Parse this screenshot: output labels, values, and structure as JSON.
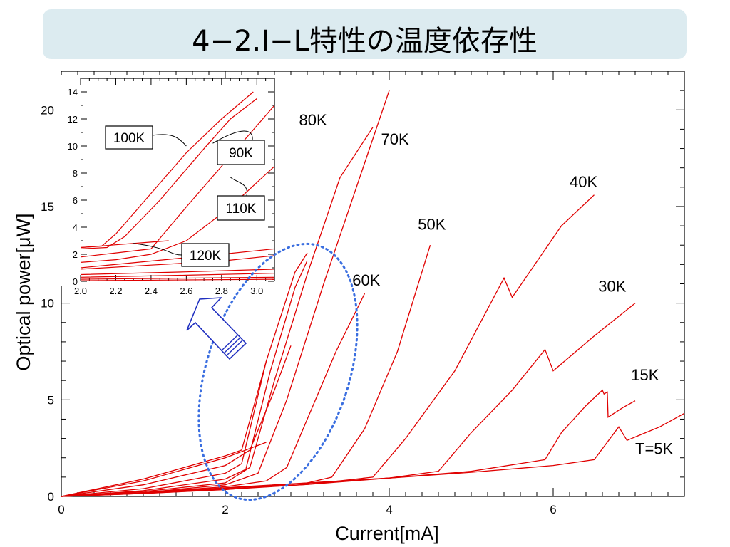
{
  "page": {
    "title": "4−2.I−L特性の温度依存性"
  },
  "colors": {
    "curve": "#e00000",
    "ellipse": "#3a6ee0",
    "arrow": "#2030c0",
    "axis": "#000000"
  },
  "chart_data": [
    {
      "type": "line",
      "xlabel": "Current[mA]",
      "ylabel": "Optical power[μW]",
      "xlim": [
        0,
        7.6
      ],
      "ylim": [
        0,
        22
      ],
      "xticks": [
        0,
        2,
        4,
        6
      ],
      "yticks": [
        0,
        5,
        10,
        15,
        20
      ],
      "series": [
        {
          "name": "T=5K",
          "label_x": 7.0,
          "label_y": 2.2,
          "points": [
            [
              0,
              0
            ],
            [
              1,
              0.2
            ],
            [
              2,
              0.45
            ],
            [
              3,
              0.7
            ],
            [
              4,
              0.95
            ],
            [
              5,
              1.25
            ],
            [
              6,
              1.6
            ],
            [
              6.5,
              1.9
            ],
            [
              6.8,
              3.6
            ],
            [
              6.9,
              2.9
            ],
            [
              7.3,
              3.6
            ],
            [
              7.6,
              4.3
            ]
          ]
        },
        {
          "name": "15K",
          "label_x": 6.95,
          "label_y": 6.0,
          "points": [
            [
              0,
              0
            ],
            [
              1,
              0.18
            ],
            [
              2,
              0.42
            ],
            [
              3,
              0.68
            ],
            [
              4,
              0.95
            ],
            [
              5,
              1.3
            ],
            [
              5.9,
              1.9
            ],
            [
              6.1,
              3.3
            ],
            [
              6.4,
              4.7
            ],
            [
              6.6,
              5.5
            ],
            [
              6.62,
              5.3
            ],
            [
              6.66,
              5.4
            ],
            [
              6.67,
              4.1
            ],
            [
              6.85,
              4.6
            ],
            [
              7.0,
              4.95
            ]
          ]
        },
        {
          "name": "30K",
          "label_x": 6.55,
          "label_y": 10.6,
          "points": [
            [
              0,
              0
            ],
            [
              1,
              0.16
            ],
            [
              2,
              0.38
            ],
            [
              3,
              0.62
            ],
            [
              4,
              0.95
            ],
            [
              4.6,
              1.3
            ],
            [
              5.0,
              3.3
            ],
            [
              5.5,
              5.5
            ],
            [
              5.9,
              7.6
            ],
            [
              6.0,
              6.5
            ],
            [
              6.5,
              8.3
            ],
            [
              7.0,
              10.0
            ]
          ]
        },
        {
          "name": "40K",
          "label_x": 6.2,
          "label_y": 16.0,
          "points": [
            [
              0,
              0
            ],
            [
              1,
              0.15
            ],
            [
              2,
              0.36
            ],
            [
              3,
              0.62
            ],
            [
              3.8,
              1.0
            ],
            [
              4.2,
              3.0
            ],
            [
              4.8,
              6.5
            ],
            [
              5.4,
              11.3
            ],
            [
              5.5,
              10.3
            ],
            [
              6.1,
              14.0
            ],
            [
              6.5,
              15.6
            ]
          ]
        },
        {
          "name": "50K",
          "label_x": 4.35,
          "label_y": 13.8,
          "points": [
            [
              0,
              0
            ],
            [
              1,
              0.15
            ],
            [
              2,
              0.35
            ],
            [
              3,
              0.7
            ],
            [
              3.3,
              1.0
            ],
            [
              3.7,
              3.5
            ],
            [
              4.1,
              7.5
            ],
            [
              4.5,
              13.0
            ]
          ]
        },
        {
          "name": "60K",
          "label_x": 3.55,
          "label_y": 10.9,
          "points": [
            [
              0,
              0
            ],
            [
              1,
              0.2
            ],
            [
              2,
              0.5
            ],
            [
              2.5,
              0.8
            ],
            [
              2.75,
              1.5
            ],
            [
              3.0,
              4.0
            ],
            [
              3.35,
              7.5
            ],
            [
              3.7,
              10.5
            ]
          ]
        },
        {
          "name": "70K",
          "label_x": 3.9,
          "label_y": 18.2,
          "points": [
            [
              0,
              0
            ],
            [
              1,
              0.2
            ],
            [
              2,
              0.6
            ],
            [
              2.4,
              1.2
            ],
            [
              2.75,
              5.0
            ],
            [
              3.2,
              11.0
            ],
            [
              3.6,
              16.0
            ],
            [
              4.0,
              21.0
            ]
          ]
        },
        {
          "name": "80K",
          "label_x": 2.9,
          "label_y": 19.2,
          "points": [
            [
              0,
              0
            ],
            [
              1,
              0.25
            ],
            [
              2,
              0.7
            ],
            [
              2.3,
              1.5
            ],
            [
              2.6,
              6.0
            ],
            [
              3.0,
              11.5
            ],
            [
              3.4,
              16.5
            ],
            [
              3.8,
              19.1
            ]
          ]
        },
        {
          "name": "",
          "points": [
            [
              0,
              0
            ],
            [
              1,
              0.3
            ],
            [
              2,
              0.9
            ],
            [
              2.25,
              1.4
            ],
            [
              2.55,
              6.5
            ],
            [
              2.85,
              10.8
            ],
            [
              3.0,
              12.2
            ]
          ]
        },
        {
          "name": "",
          "points": [
            [
              0,
              0
            ],
            [
              1,
              0.4
            ],
            [
              2,
              1.2
            ],
            [
              2.2,
              1.7
            ],
            [
              2.5,
              7.0
            ],
            [
              2.85,
              11.6
            ],
            [
              3.0,
              12.6
            ]
          ]
        },
        {
          "name": "",
          "points": [
            [
              0,
              0
            ],
            [
              1,
              0.6
            ],
            [
              2,
              1.6
            ],
            [
              2.3,
              2.4
            ],
            [
              2.6,
              5.5
            ],
            [
              2.8,
              7.8
            ]
          ]
        },
        {
          "name": "",
          "points": [
            [
              0,
              0
            ],
            [
              1,
              0.8
            ],
            [
              2,
              2.0
            ],
            [
              2.5,
              2.8
            ]
          ]
        },
        {
          "name": "",
          "points": [
            [
              0,
              0
            ],
            [
              1,
              0.9
            ],
            [
              2,
              2.1
            ],
            [
              2.2,
              2.4
            ],
            [
              2.5,
              7.0
            ]
          ]
        }
      ]
    },
    {
      "type": "line",
      "inset": true,
      "xlim": [
        2.0,
        3.1
      ],
      "ylim": [
        0,
        15
      ],
      "xticks": [
        "2.0",
        "2.2",
        "2.4",
        "2.6",
        "2.8",
        "3.0"
      ],
      "yticks": [
        "0",
        "2",
        "4",
        "6",
        "8",
        "10",
        "12",
        "14"
      ],
      "series": [
        {
          "name": "100K",
          "points": [
            [
              2.0,
              2.5
            ],
            [
              2.12,
              2.6
            ],
            [
              2.2,
              3.5
            ],
            [
              2.4,
              6.5
            ],
            [
              2.6,
              9.5
            ],
            [
              2.8,
              12.0
            ],
            [
              2.98,
              14.0
            ]
          ]
        },
        {
          "name": "90K",
          "points": [
            [
              2.0,
              2.4
            ],
            [
              2.15,
              2.5
            ],
            [
              2.25,
              3.3
            ],
            [
              2.45,
              6.0
            ],
            [
              2.7,
              9.8
            ],
            [
              2.85,
              12.0
            ],
            [
              3.0,
              13.5
            ]
          ]
        },
        {
          "name": "110K",
          "points": [
            [
              2.0,
              1.8
            ],
            [
              2.2,
              2.1
            ],
            [
              2.4,
              2.4
            ],
            [
              2.6,
              5.5
            ],
            [
              2.8,
              8.5
            ],
            [
              3.0,
              11.5
            ],
            [
              3.1,
              13.0
            ]
          ]
        },
        {
          "name": "120K",
          "points": [
            [
              2.0,
              1.4
            ],
            [
              2.2,
              1.6
            ],
            [
              2.4,
              2.0
            ],
            [
              2.6,
              3.0
            ],
            [
              2.85,
              5.5
            ],
            [
              3.1,
              8.5
            ]
          ]
        },
        {
          "name": "",
          "points": [
            [
              2.0,
              2.5
            ],
            [
              2.2,
              2.7
            ],
            [
              2.4,
              2.9
            ],
            [
              2.5,
              3.0
            ]
          ]
        },
        {
          "name": "",
          "points": [
            [
              2.0,
              0.9
            ],
            [
              2.4,
              1.2
            ],
            [
              2.8,
              1.5
            ],
            [
              3.1,
              1.9
            ],
            [
              3.1,
              4.6
            ]
          ]
        },
        {
          "name": "",
          "points": [
            [
              2.0,
              1.0
            ],
            [
              2.4,
              1.5
            ],
            [
              2.8,
              2.0
            ],
            [
              3.1,
              2.4
            ]
          ]
        },
        {
          "name": "",
          "points": [
            [
              2.0,
              0.5
            ],
            [
              2.6,
              0.7
            ],
            [
              3.1,
              0.9
            ]
          ]
        },
        {
          "name": "",
          "points": [
            [
              2.0,
              0.3
            ],
            [
              2.6,
              0.45
            ],
            [
              3.1,
              0.6
            ]
          ]
        },
        {
          "name": "",
          "points": [
            [
              2.0,
              0.15
            ],
            [
              3.1,
              0.3
            ]
          ]
        },
        {
          "name": "",
          "points": [
            [
              2.0,
              0.05
            ],
            [
              3.1,
              0.15
            ]
          ]
        }
      ],
      "callouts": [
        {
          "label": "100K",
          "target": [
            2.6,
            10.0
          ]
        },
        {
          "label": "90K",
          "target": [
            2.75,
            10.2
          ]
        },
        {
          "label": "110K",
          "target": [
            2.85,
            7.7
          ]
        },
        {
          "label": "120K",
          "target": [
            2.3,
            2.8
          ]
        }
      ]
    }
  ]
}
